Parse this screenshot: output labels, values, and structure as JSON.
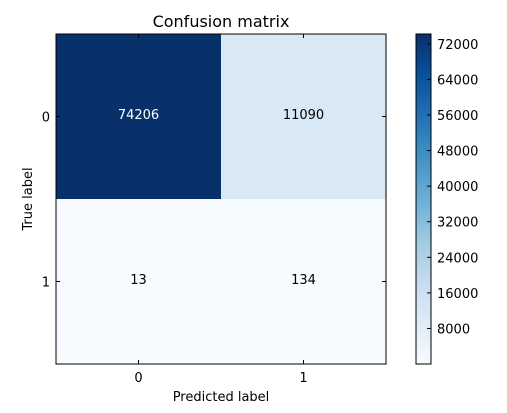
{
  "chart_data": {
    "type": "heatmap",
    "title": "Confusion matrix",
    "xlabel": "Predicted label",
    "ylabel": "True label",
    "x_categories": [
      "0",
      "1"
    ],
    "y_categories": [
      "0",
      "1"
    ],
    "values": [
      [
        74206,
        11090
      ],
      [
        13,
        134
      ]
    ],
    "colormap": "Blues",
    "color_range": [
      13,
      74206
    ],
    "colorbar_ticks": [
      "8000",
      "16000",
      "24000",
      "32000",
      "40000",
      "48000",
      "56000",
      "64000",
      "72000"
    ],
    "colorbar_tick_values": [
      8000,
      16000,
      24000,
      32000,
      40000,
      48000,
      56000,
      64000,
      72000
    ],
    "grid": false
  }
}
